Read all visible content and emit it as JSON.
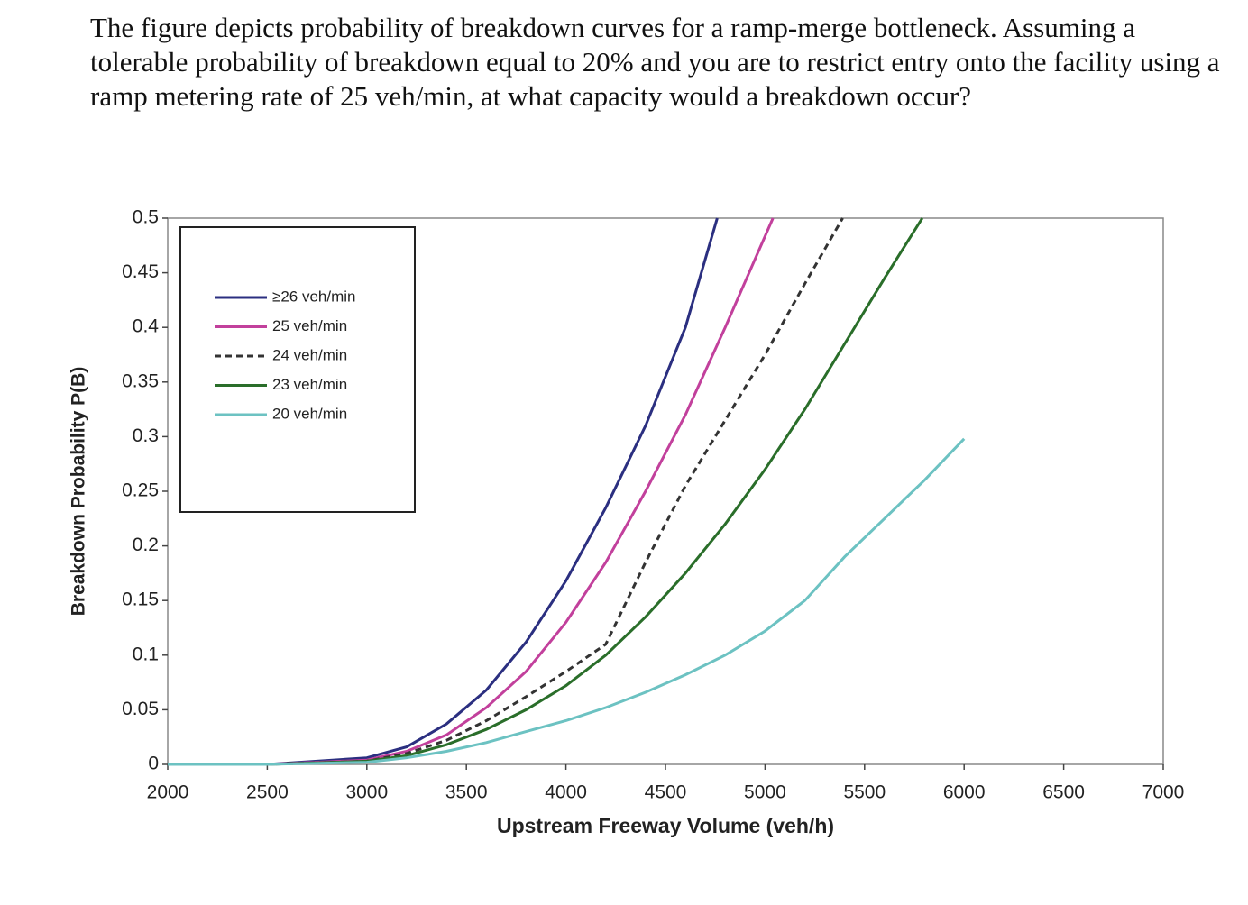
{
  "question": "The figure depicts probability of breakdown curves for a ramp-merge bottleneck. Assuming a tolerable probability of breakdown equal to 20% and you are to restrict entry onto the facility using a ramp metering rate of 25 veh/min, at what capacity would a breakdown occur?",
  "chart_data": {
    "type": "line",
    "x_label": "Upstream Freeway Volume (veh/h)",
    "y_label": "Breakdown Probability P(B)",
    "xlim": [
      2000,
      7000
    ],
    "xticks": [
      2000,
      2500,
      3000,
      3500,
      4000,
      4500,
      5000,
      5500,
      6000,
      6500,
      7000
    ],
    "ylim": [
      0,
      0.5
    ],
    "yticks": [
      0,
      0.05,
      0.1,
      0.15,
      0.2,
      0.25,
      0.3,
      0.35,
      0.4,
      0.45,
      0.5
    ],
    "legend": "upper left",
    "series": [
      {
        "name": "≥26 veh/min",
        "color": "#2b2f80",
        "dash": false,
        "x": [
          2000,
          2500,
          3000,
          3200,
          3400,
          3600,
          3800,
          4000,
          4200,
          4400,
          4600,
          4760
        ],
        "values": [
          0,
          0,
          0.006,
          0.016,
          0.037,
          0.068,
          0.112,
          0.168,
          0.235,
          0.31,
          0.4,
          0.5
        ]
      },
      {
        "name": "25 veh/min",
        "color": "#c2409c",
        "dash": false,
        "x": [
          2000,
          2500,
          3000,
          3200,
          3400,
          3600,
          3800,
          4000,
          4200,
          4400,
          4600,
          4800,
          5040
        ],
        "values": [
          0,
          0,
          0.004,
          0.012,
          0.027,
          0.052,
          0.085,
          0.13,
          0.185,
          0.25,
          0.32,
          0.4,
          0.5
        ]
      },
      {
        "name": "24 veh/min",
        "color": "#333333",
        "dash": true,
        "x": [
          2000,
          2500,
          3000,
          3200,
          3400,
          3600,
          3800,
          4000,
          4200,
          4400,
          4600,
          4800,
          5000,
          5200,
          5390
        ],
        "values": [
          0,
          0,
          0.003,
          0.01,
          0.022,
          0.04,
          0.062,
          0.085,
          0.11,
          0.185,
          0.255,
          0.315,
          0.375,
          0.44,
          0.5
        ]
      },
      {
        "name": "23 veh/min",
        "color": "#2a6e2a",
        "dash": false,
        "x": [
          2000,
          2500,
          3000,
          3200,
          3400,
          3600,
          3800,
          4000,
          4200,
          4400,
          4600,
          4800,
          5000,
          5200,
          5400,
          5600,
          5790
        ],
        "values": [
          0,
          0,
          0.003,
          0.008,
          0.018,
          0.032,
          0.05,
          0.072,
          0.1,
          0.135,
          0.175,
          0.22,
          0.27,
          0.325,
          0.385,
          0.445,
          0.5
        ]
      },
      {
        "name": "20 veh/min",
        "color": "#6cc2c2",
        "dash": false,
        "x": [
          2000,
          2500,
          3000,
          3200,
          3400,
          3600,
          3800,
          4000,
          4200,
          4400,
          4600,
          4800,
          5000,
          5200,
          5400,
          5600,
          5800,
          6000
        ],
        "values": [
          0,
          0,
          0.002,
          0.006,
          0.012,
          0.02,
          0.03,
          0.04,
          0.052,
          0.066,
          0.082,
          0.1,
          0.122,
          0.15,
          0.19,
          0.225,
          0.26,
          0.298
        ]
      }
    ]
  }
}
